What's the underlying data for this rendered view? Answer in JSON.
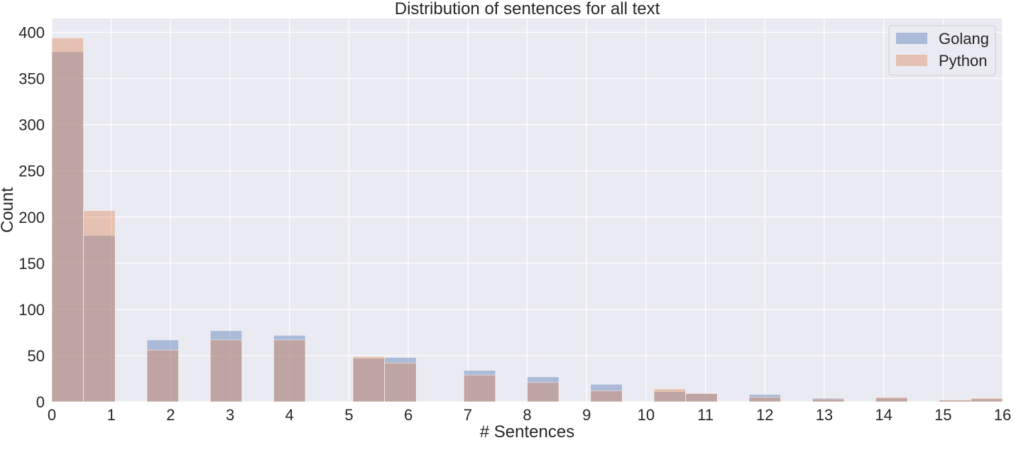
{
  "chart_data": {
    "type": "bar",
    "title": "Distribution of sentences for all text",
    "xlabel": "# Sentences",
    "ylabel": "Count",
    "xlim": [
      0,
      16
    ],
    "ylim": [
      0,
      415
    ],
    "xticks": [
      "0",
      "1",
      "2",
      "3",
      "4",
      "5",
      "6",
      "7",
      "8",
      "9",
      "10",
      "11",
      "12",
      "13",
      "14",
      "15",
      "16"
    ],
    "yticks": [
      "0",
      "50",
      "100",
      "150",
      "200",
      "250",
      "300",
      "350",
      "400"
    ],
    "grid": true,
    "legend_position": "top-right",
    "background_color": "#eaeaf2",
    "bin_width": 0.5333,
    "bin_starts": [
      0,
      0.5333,
      1.6,
      2.6667,
      3.7333,
      5.0667,
      5.6,
      6.9333,
      8.0,
      9.0667,
      10.1333,
      10.6667,
      11.7333,
      12.8,
      13.8667,
      14.9333,
      15.4667
    ],
    "series": [
      {
        "name": "Golang",
        "color": "#4c72b0",
        "opacity": 0.4,
        "values": [
          379,
          180,
          67,
          77,
          72,
          47,
          48,
          34,
          27,
          19,
          11,
          9,
          8,
          4,
          4,
          2,
          3
        ]
      },
      {
        "name": "Python",
        "color": "#dd8452",
        "opacity": 0.4,
        "values": [
          394,
          207,
          56,
          67,
          67,
          49,
          42,
          29,
          21,
          12,
          14,
          9,
          5,
          3,
          5,
          2,
          4
        ]
      }
    ]
  }
}
